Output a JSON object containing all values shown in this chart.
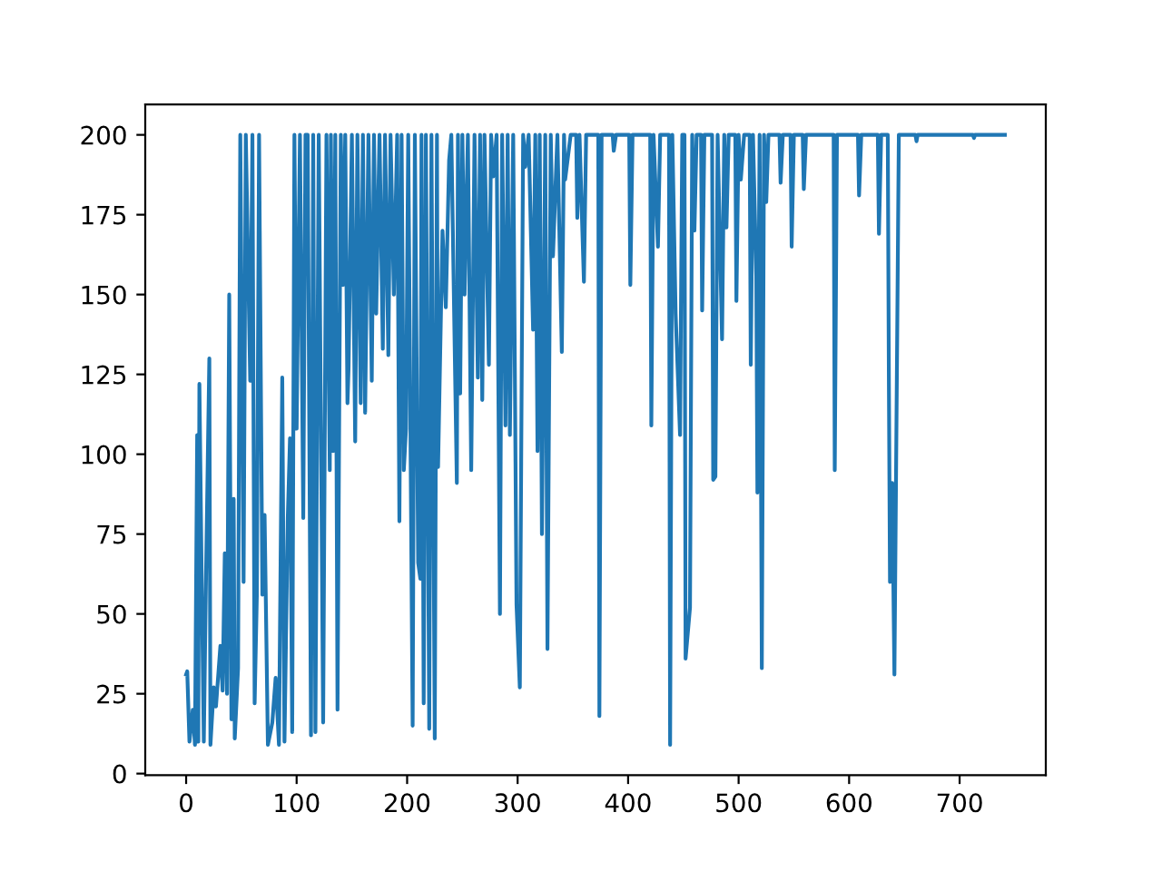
{
  "chart_data": {
    "type": "line",
    "x": [
      0,
      1,
      3,
      6,
      8,
      10,
      11,
      12,
      14,
      16,
      18,
      21,
      22,
      25,
      27,
      31,
      33,
      35,
      37,
      39,
      41,
      43,
      44,
      47,
      49,
      52,
      54,
      58,
      60,
      62,
      64,
      66,
      69,
      71,
      74,
      78,
      81,
      84,
      87,
      89,
      92,
      94,
      96,
      98,
      100,
      103,
      106,
      108,
      110,
      113,
      115,
      117,
      120,
      124,
      127,
      130,
      131,
      133,
      135,
      137,
      140,
      142,
      144,
      146,
      147,
      150,
      153,
      155,
      158,
      160,
      162,
      165,
      168,
      170,
      172,
      175,
      178,
      180,
      183,
      185,
      188,
      191,
      193,
      195,
      197,
      199,
      201,
      205,
      207,
      210,
      212,
      213,
      215,
      217,
      220,
      222,
      225,
      227,
      228,
      232,
      235,
      238,
      240,
      245,
      246,
      248,
      250,
      252,
      255,
      258,
      261,
      264,
      266,
      268,
      270,
      274,
      276,
      278,
      281,
      284,
      286,
      289,
      291,
      293,
      296,
      299,
      302,
      305,
      307,
      310,
      314,
      316,
      318,
      320,
      322,
      325,
      327,
      330,
      332,
      336,
      340,
      342,
      343,
      348,
      353,
      354,
      356,
      360,
      362,
      373,
      374,
      376,
      386,
      387,
      389,
      401,
      402,
      404,
      420,
      421,
      423,
      427,
      429,
      437,
      438,
      440,
      443,
      447,
      449,
      451,
      452,
      456,
      458,
      460,
      462,
      466,
      467,
      469,
      476,
      477,
      479,
      481,
      485,
      487,
      489,
      491,
      497,
      498,
      500,
      502,
      505,
      510,
      511,
      513,
      516,
      517,
      519,
      521,
      523,
      525,
      527,
      537,
      538,
      540,
      547,
      548,
      550,
      558,
      559,
      561,
      586,
      587,
      589,
      608,
      609,
      611,
      626,
      627,
      629,
      635,
      636,
      637,
      639,
      641,
      645,
      660,
      661,
      662,
      712,
      713,
      714,
      741
    ],
    "series": [
      {
        "color": "#1f77b4",
        "values": [
          31,
          32,
          10,
          20,
          9,
          106,
          10,
          122,
          63,
          10,
          62,
          130,
          9,
          27,
          21,
          40,
          26,
          69,
          25,
          150,
          17,
          86,
          11,
          33,
          200,
          60,
          200,
          123,
          200,
          22,
          56,
          200,
          56,
          81,
          9,
          16,
          30,
          9,
          124,
          10,
          80,
          105,
          13,
          200,
          108,
          200,
          80,
          200,
          200,
          12,
          200,
          13,
          200,
          16,
          200,
          95,
          200,
          101,
          200,
          20,
          200,
          153,
          200,
          116,
          127,
          200,
          104,
          200,
          116,
          200,
          113,
          200,
          123,
          200,
          144,
          200,
          133,
          200,
          131,
          200,
          150,
          200,
          79,
          200,
          95,
          108,
          200,
          15,
          200,
          66,
          61,
          200,
          22,
          200,
          14,
          200,
          11,
          200,
          96,
          170,
          146,
          192,
          200,
          91,
          200,
          119,
          200,
          150,
          200,
          95,
          200,
          124,
          200,
          117,
          200,
          128,
          200,
          187,
          200,
          50,
          200,
          109,
          200,
          106,
          200,
          53,
          27,
          200,
          190,
          200,
          139,
          200,
          101,
          200,
          75,
          200,
          39,
          200,
          162,
          200,
          132,
          200,
          186,
          200,
          200,
          174,
          200,
          154,
          200,
          200,
          18,
          200,
          200,
          195,
          200,
          200,
          153,
          200,
          200,
          109,
          200,
          165,
          200,
          200,
          9,
          200,
          144,
          106,
          200,
          200,
          36,
          52,
          200,
          170,
          200,
          200,
          145,
          200,
          200,
          92,
          93,
          200,
          136,
          200,
          171,
          200,
          200,
          148,
          200,
          186,
          200,
          200,
          128,
          200,
          156,
          88,
          200,
          33,
          200,
          179,
          200,
          200,
          185,
          200,
          200,
          165,
          200,
          200,
          183,
          200,
          200,
          95,
          200,
          200,
          181,
          200,
          200,
          169,
          200,
          200,
          122,
          60,
          91,
          31,
          200,
          200,
          198,
          200,
          200,
          199,
          200,
          200
        ]
      }
    ],
    "xlim": [
      -37,
      778
    ],
    "ylim": [
      -0.5,
      209.5
    ],
    "xticks": [
      0,
      100,
      200,
      300,
      400,
      500,
      600,
      700
    ],
    "yticks": [
      0,
      25,
      50,
      75,
      100,
      125,
      150,
      175,
      200
    ],
    "line_style": "solid"
  }
}
